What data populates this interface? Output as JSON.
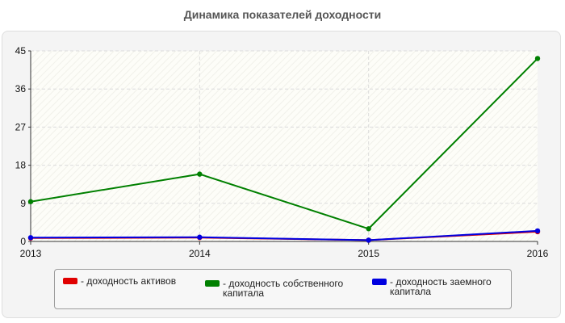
{
  "chart_data": {
    "type": "line",
    "title": "Динамика показателей доходности",
    "xlabel": "",
    "ylabel": "",
    "categories": [
      "2013",
      "2014",
      "2015",
      "2016"
    ],
    "yticks": [
      "0",
      "9",
      "18",
      "27",
      "36",
      "45"
    ],
    "ylim": [
      0,
      45
    ],
    "grid": true,
    "legend_position": "bottom",
    "series": [
      {
        "name": "- доходность активов",
        "color": "#e00000",
        "values": [
          0.8,
          0.9,
          0.3,
          2.3
        ]
      },
      {
        "name": "- доходность собственного капитала",
        "color": "#008000",
        "values": [
          9.4,
          15.9,
          3.0,
          43.2
        ]
      },
      {
        "name": "- доходность заемного капитала",
        "color": "#0000e0",
        "values": [
          0.9,
          1.0,
          0.3,
          2.5
        ]
      }
    ]
  }
}
